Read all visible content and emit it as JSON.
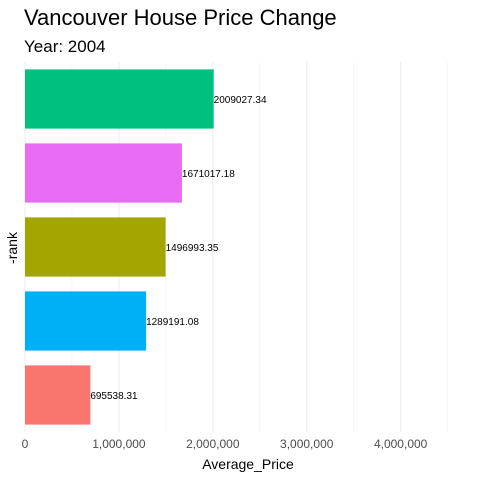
{
  "chart_data": {
    "type": "bar",
    "orientation": "horizontal",
    "title": "Vancouver House Price Change",
    "subtitle": "Year: 2004",
    "xlabel": "Average_Price",
    "ylabel": "-rank",
    "xlim": [
      0,
      4600000
    ],
    "x_ticks": [
      0,
      1000000,
      2000000,
      3000000,
      4000000
    ],
    "x_tick_labels": [
      "0",
      "1,000,000",
      "2,000,000",
      "3,000,000",
      "4,000,000"
    ],
    "grid": true,
    "legend": "none",
    "bars": [
      {
        "rank": 1,
        "value": 2009027.34,
        "label": "2009027.34",
        "color": "#00C07F"
      },
      {
        "rank": 2,
        "value": 1671017.18,
        "label": "1671017.18",
        "color": "#E76BF3"
      },
      {
        "rank": 3,
        "value": 1496993.35,
        "label": "1496993.35",
        "color": "#A3A500"
      },
      {
        "rank": 4,
        "value": 1289191.08,
        "label": "1289191.08",
        "color": "#00B0F6"
      },
      {
        "rank": 5,
        "value": 695538.31,
        "label": "695538.31",
        "color": "#F8766D"
      }
    ]
  }
}
